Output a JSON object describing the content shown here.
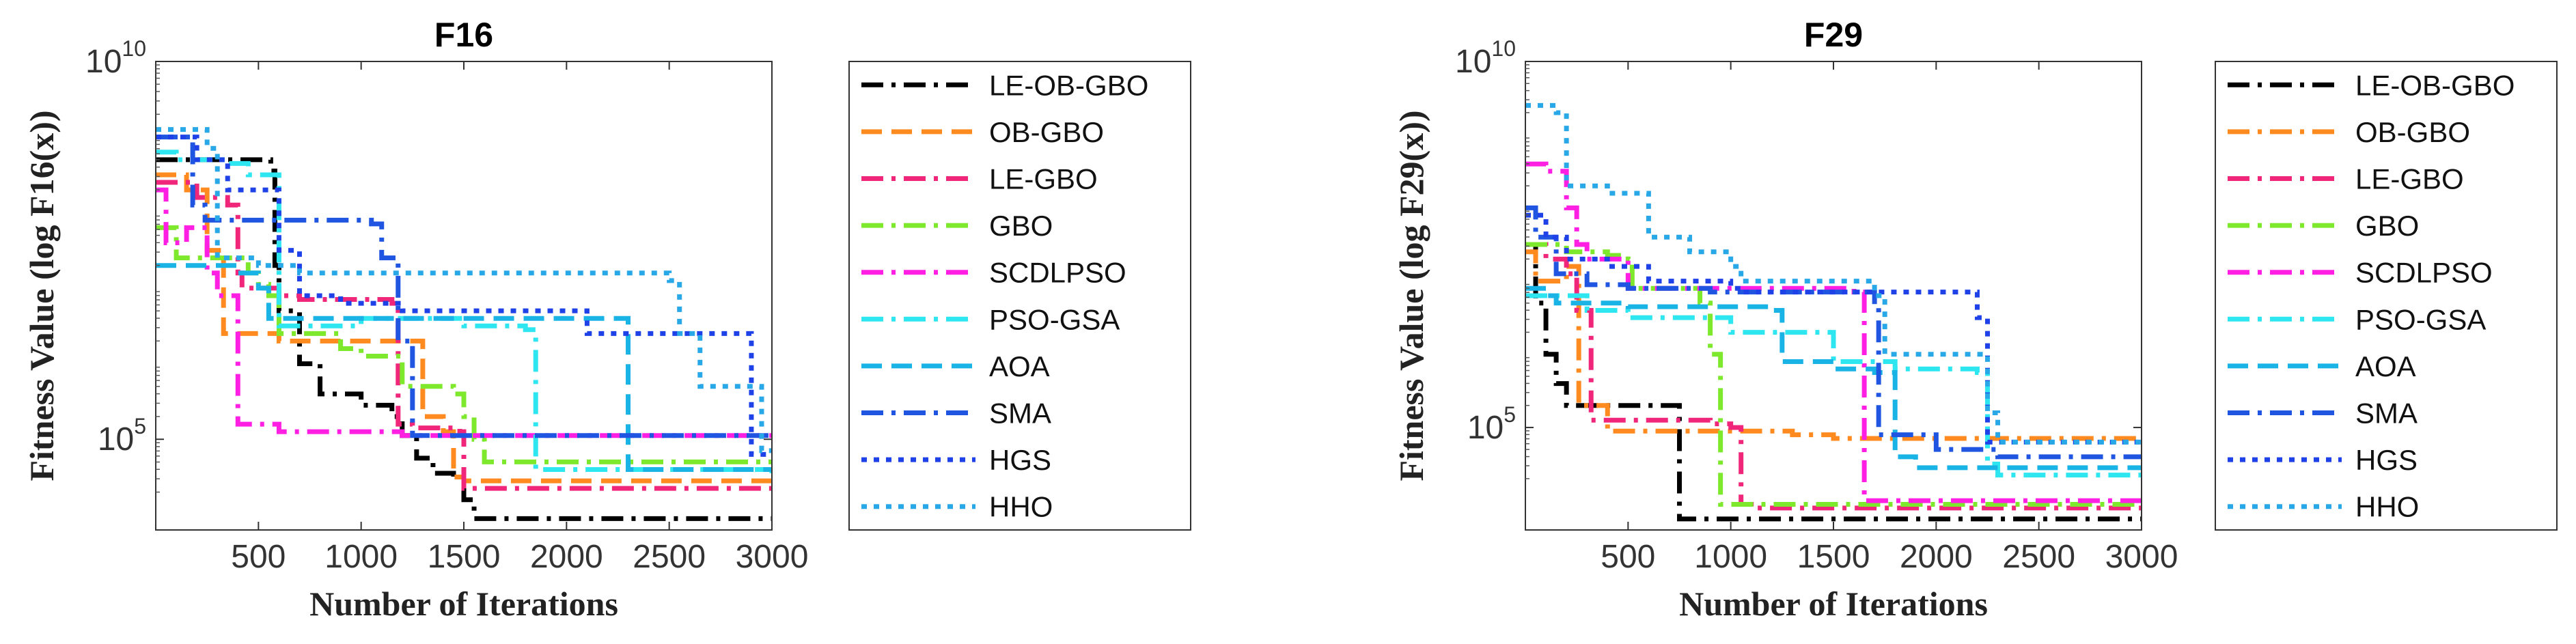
{
  "chart_data": [
    {
      "type": "line",
      "title": "F16",
      "xlabel": "Number of Iterations",
      "ylabel": "Fitness Value (log F16(x))",
      "yscale": "log",
      "xlim": [
        0,
        3000
      ],
      "ylim_log10": [
        3.8,
        10
      ],
      "xticks": [
        500,
        1000,
        1500,
        2000,
        2500,
        3000
      ],
      "xtick_labels": [
        "500",
        "1000",
        "1500",
        "2000",
        "2500",
        "3000"
      ],
      "yticks_log10": [
        5,
        10
      ],
      "ytick_labels": [
        {
          "base": "10",
          "exp": "5"
        },
        {
          "base": "10",
          "exp": "10"
        }
      ],
      "legend_position": "outside-right",
      "series": [
        {
          "name": "LE-OB-GBO",
          "color": "#000000",
          "style": "dashdot",
          "x": [
            0,
            560,
            580,
            600,
            700,
            800,
            1000,
            1150,
            1200,
            1270,
            1350,
            1450,
            1500,
            1550,
            3000
          ],
          "log10y": [
            8.7,
            8.55,
            7.3,
            6.7,
            6.0,
            5.6,
            5.45,
            5.3,
            5.05,
            4.75,
            4.55,
            4.5,
            4.2,
            3.95,
            3.95
          ]
        },
        {
          "name": "OB-GBO",
          "color": "#ff8a1f",
          "style": "dashed",
          "x": [
            0,
            150,
            250,
            330,
            600,
            1050,
            1300,
            1400,
            1450,
            1500,
            3000
          ],
          "log10y": [
            8.5,
            8.3,
            7.5,
            6.4,
            6.3,
            6.3,
            5.3,
            5.1,
            4.5,
            4.45,
            4.45
          ]
        },
        {
          "name": "LE-GBO",
          "color": "#f0267a",
          "style": "dashdot",
          "x": [
            0,
            200,
            350,
            400,
            420,
            600,
            700,
            900,
            1150,
            1180,
            1250,
            1480,
            1500,
            3000
          ],
          "log10y": [
            8.4,
            8.2,
            8.1,
            7.2,
            7.0,
            6.9,
            6.85,
            6.85,
            6.8,
            5.2,
            5.15,
            5.1,
            4.35,
            4.25
          ]
        },
        {
          "name": "GBO",
          "color": "#7ee82c",
          "style": "dashdot",
          "x": [
            0,
            100,
            450,
            500,
            550,
            600,
            900,
            1000,
            1200,
            1450,
            1500,
            1550,
            1600,
            3000
          ],
          "log10y": [
            7.8,
            7.4,
            7.2,
            7.05,
            6.9,
            6.4,
            6.2,
            6.1,
            5.7,
            5.6,
            5.3,
            5.0,
            4.7,
            4.7
          ]
        },
        {
          "name": "SCDLPSO",
          "color": "#ff1fe3",
          "style": "dashdot",
          "x": [
            0,
            50,
            150,
            250,
            300,
            400,
            600,
            1150,
            1200,
            3000
          ],
          "log10y": [
            8.3,
            7.6,
            7.8,
            7.2,
            6.9,
            5.2,
            5.1,
            5.1,
            5.05,
            5.05
          ]
        },
        {
          "name": "PSO-GSA",
          "color": "#2ee6f0",
          "style": "dashdot",
          "x": [
            0,
            100,
            350,
            450,
            600,
            1000,
            1500,
            1800,
            1850,
            3000
          ],
          "log10y": [
            8.8,
            8.7,
            8.65,
            8.5,
            6.5,
            6.6,
            6.5,
            6.45,
            4.6,
            4.55
          ]
        },
        {
          "name": "AOA",
          "color": "#1ab3e6",
          "style": "dashed",
          "x": [
            0,
            400,
            500,
            550,
            2250,
            2300,
            3000
          ],
          "log10y": [
            7.3,
            7.2,
            7.0,
            6.6,
            6.6,
            4.6,
            4.6
          ]
        },
        {
          "name": "SMA",
          "color": "#1f55e0",
          "style": "dashdot",
          "x": [
            0,
            180,
            240,
            1050,
            1100,
            1180,
            1250,
            3000
          ],
          "log10y": [
            9.0,
            8.1,
            7.9,
            7.85,
            7.4,
            6.3,
            5.05,
            5.05
          ]
        },
        {
          "name": "HGS",
          "color": "#1f42e8",
          "style": "dotted",
          "x": [
            0,
            200,
            350,
            600,
            700,
            900,
            1200,
            2000,
            2100,
            2800,
            2900,
            3000
          ],
          "log10y": [
            9.0,
            8.7,
            8.3,
            7.5,
            6.9,
            6.8,
            6.7,
            6.7,
            6.4,
            6.4,
            4.8,
            4.8
          ]
        },
        {
          "name": "HHO",
          "color": "#29a8e8",
          "style": "dotted",
          "x": [
            0,
            250,
            300,
            500,
            700,
            1500,
            2500,
            2550,
            2650,
            2950,
            3000
          ],
          "log10y": [
            9.1,
            8.85,
            7.4,
            7.3,
            7.2,
            7.2,
            7.1,
            6.4,
            5.7,
            4.85,
            4.85
          ]
        }
      ]
    },
    {
      "type": "line",
      "title": "F29",
      "xlabel": "Number of Iterations",
      "ylabel": "Fitness Value (log F29(x))",
      "yscale": "log",
      "xlim": [
        0,
        3000
      ],
      "ylim_log10": [
        3.6,
        10
      ],
      "xticks": [
        500,
        1000,
        1500,
        2000,
        2500,
        3000
      ],
      "xtick_labels": [
        "500",
        "1000",
        "1500",
        "2000",
        "2500",
        "3000"
      ],
      "yticks_log10": [
        5,
        10
      ],
      "ytick_labels": [
        {
          "base": "10",
          "exp": "5"
        },
        {
          "base": "10",
          "exp": "10"
        }
      ],
      "legend_position": "outside-right",
      "series": [
        {
          "name": "LE-OB-GBO",
          "color": "#000000",
          "style": "dashdot",
          "x": [
            0,
            50,
            100,
            150,
            200,
            700,
            750,
            3000
          ],
          "log10y": [
            7.5,
            6.7,
            6.0,
            5.6,
            5.3,
            5.3,
            3.75,
            3.75
          ]
        },
        {
          "name": "OB-GBO",
          "color": "#ff8a1f",
          "style": "dashdot",
          "x": [
            0,
            50,
            200,
            260,
            400,
            1000,
            1300,
            1500,
            3000
          ],
          "log10y": [
            7.4,
            7.0,
            7.2,
            5.3,
            4.95,
            4.95,
            4.9,
            4.85,
            4.85
          ]
        },
        {
          "name": "LE-GBO",
          "color": "#f0267a",
          "style": "dashdot",
          "x": [
            0,
            100,
            200,
            250,
            320,
            700,
            900,
            1000,
            1050,
            1100,
            3000
          ],
          "log10y": [
            7.5,
            7.3,
            7.1,
            6.6,
            5.1,
            5.1,
            5.05,
            5.0,
            3.95,
            3.9,
            3.9
          ]
        },
        {
          "name": "GBO",
          "color": "#7ee82c",
          "style": "dashdot",
          "x": [
            0,
            200,
            400,
            500,
            520,
            600,
            850,
            900,
            950,
            3000
          ],
          "log10y": [
            7.5,
            7.4,
            7.35,
            7.3,
            6.9,
            6.9,
            6.7,
            6.0,
            3.95,
            3.95
          ]
        },
        {
          "name": "SCDLPSO",
          "color": "#ff1fe3",
          "style": "dashdot",
          "x": [
            0,
            100,
            200,
            250,
            300,
            500,
            1600,
            1650,
            3000
          ],
          "log10y": [
            8.6,
            8.5,
            8.0,
            7.5,
            7.3,
            6.9,
            6.85,
            4.0,
            4.0
          ]
        },
        {
          "name": "PSO-GSA",
          "color": "#2ee6f0",
          "style": "dashdot",
          "x": [
            0,
            300,
            500,
            1000,
            1500,
            1800,
            2200,
            2250,
            2300,
            3000
          ],
          "log10y": [
            6.8,
            6.6,
            6.5,
            6.3,
            5.9,
            5.8,
            5.75,
            4.5,
            4.35,
            4.35
          ]
        },
        {
          "name": "AOA",
          "color": "#1ab3e6",
          "style": "dashed",
          "x": [
            0,
            100,
            150,
            400,
            500,
            1200,
            1250,
            1500,
            1700,
            1800,
            1900,
            3000
          ],
          "log10y": [
            6.9,
            6.8,
            6.7,
            6.7,
            6.65,
            6.6,
            5.9,
            5.8,
            5.75,
            4.6,
            4.45,
            4.45
          ]
        },
        {
          "name": "SMA",
          "color": "#1f55e0",
          "style": "dashdot",
          "x": [
            0,
            50,
            150,
            300,
            500,
            900,
            1700,
            1720,
            2000,
            2300,
            3000
          ],
          "log10y": [
            8.0,
            7.6,
            7.1,
            6.95,
            6.9,
            6.85,
            6.65,
            4.9,
            4.7,
            4.6,
            4.6
          ]
        },
        {
          "name": "HGS",
          "color": "#1f42e8",
          "style": "dotted",
          "x": [
            0,
            100,
            200,
            400,
            600,
            1000,
            1050,
            2200,
            2250,
            3000
          ],
          "log10y": [
            7.9,
            7.6,
            7.3,
            7.2,
            7.0,
            6.9,
            6.85,
            6.5,
            4.8,
            4.8
          ]
        },
        {
          "name": "HHO",
          "color": "#29a8e8",
          "style": "dotted",
          "x": [
            0,
            150,
            200,
            400,
            600,
            800,
            1000,
            1050,
            1700,
            1750,
            2250,
            2300,
            3000
          ],
          "log10y": [
            9.4,
            9.3,
            8.3,
            8.2,
            7.6,
            7.4,
            7.2,
            7.0,
            6.8,
            6.0,
            5.2,
            4.8,
            4.8
          ]
        }
      ]
    }
  ]
}
